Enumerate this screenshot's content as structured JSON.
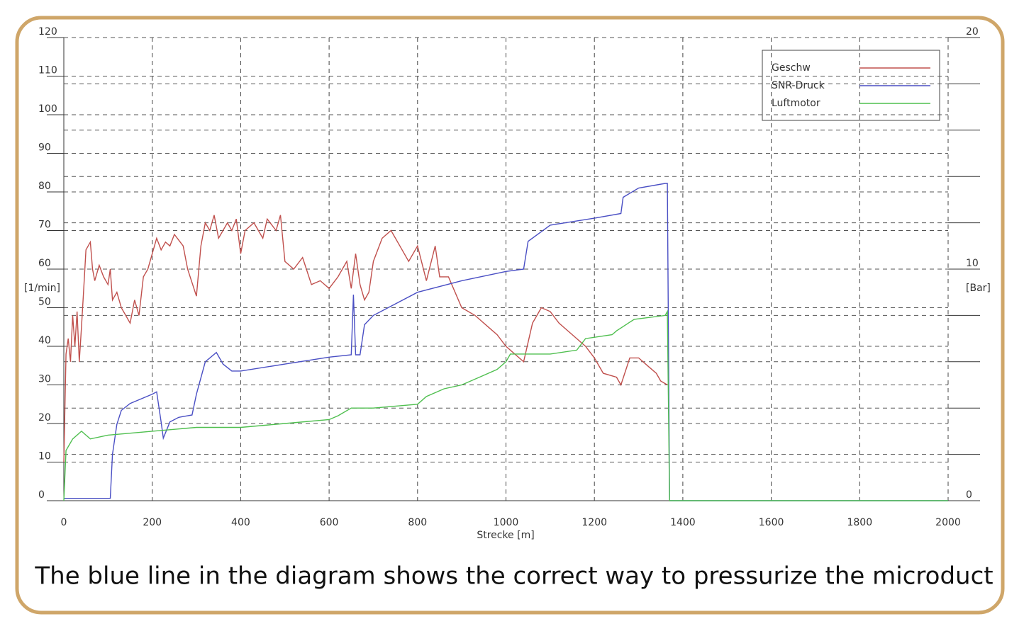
{
  "chart_data": {
    "type": "line",
    "caption": "The blue line in the diagram shows the correct way to pressurize the microduct",
    "xlabel": "Strecke [m]",
    "ylabel": "[1/min]",
    "y2label": "[Bar]",
    "xlim": [
      0,
      2000
    ],
    "xticks": [
      0,
      200,
      400,
      600,
      800,
      1000,
      1200,
      1400,
      1600,
      1800,
      2000
    ],
    "ylim": [
      0,
      120
    ],
    "yticks": [
      0,
      10,
      20,
      30,
      40,
      50,
      60,
      70,
      80,
      90,
      100,
      110,
      120
    ],
    "y2lim": [
      0,
      20
    ],
    "y2ticks": [
      0,
      10,
      20
    ],
    "y2minor_step": 2,
    "grid": true,
    "legend": "upper right",
    "series": [
      {
        "name": "Geschw",
        "color": "#c0504d",
        "axis": "y",
        "x": [
          0,
          5,
          10,
          15,
          20,
          25,
          30,
          35,
          40,
          45,
          50,
          55,
          60,
          65,
          70,
          80,
          90,
          100,
          105,
          110,
          120,
          130,
          140,
          150,
          160,
          170,
          180,
          190,
          200,
          210,
          220,
          230,
          240,
          250,
          270,
          280,
          300,
          310,
          320,
          330,
          340,
          350,
          370,
          380,
          390,
          400,
          410,
          430,
          450,
          460,
          480,
          490,
          500,
          520,
          540,
          560,
          580,
          600,
          620,
          640,
          650,
          660,
          670,
          680,
          690,
          700,
          720,
          740,
          760,
          780,
          800,
          820,
          840,
          850,
          870,
          900,
          930,
          960,
          980,
          1000,
          1040,
          1060,
          1080,
          1100,
          1120,
          1150,
          1180,
          1200,
          1220,
          1250,
          1260,
          1280,
          1300,
          1320,
          1340,
          1350,
          1365
        ],
        "values": [
          10,
          38,
          42,
          36,
          48,
          40,
          49,
          36,
          45,
          55,
          65,
          66,
          67,
          60,
          57,
          61,
          58,
          56,
          60,
          52,
          54,
          50,
          48,
          46,
          52,
          48,
          58,
          60,
          64,
          68,
          65,
          67,
          66,
          69,
          66,
          60,
          53,
          66,
          72,
          70,
          74,
          68,
          72,
          70,
          73,
          64,
          70,
          72,
          68,
          73,
          70,
          74,
          62,
          60,
          63,
          56,
          57,
          55,
          58,
          62,
          55,
          64,
          56,
          52,
          54,
          62,
          68,
          70,
          66,
          62,
          66,
          57,
          66,
          58,
          58,
          50,
          48,
          45,
          43,
          40,
          36,
          46,
          50,
          49,
          46,
          43,
          40,
          37,
          33,
          32,
          30,
          37,
          37,
          35,
          33,
          31,
          30
        ]
      },
      {
        "name": "SNR-Druck",
        "color": "#4a4fc4",
        "axis": "y2",
        "x": [
          0,
          105,
          110,
          120,
          130,
          150,
          200,
          210,
          220,
          225,
          240,
          260,
          290,
          300,
          320,
          345,
          360,
          380,
          400,
          500,
          600,
          650,
          655,
          660,
          670,
          680,
          700,
          800,
          900,
          1000,
          1040,
          1050,
          1100,
          1200,
          1260,
          1265,
          1300,
          1360,
          1365,
          1370,
          2000
        ],
        "values": [
          0.1,
          0.1,
          2,
          3.3,
          3.9,
          4.2,
          4.6,
          4.7,
          3.4,
          2.7,
          3.4,
          3.6,
          3.7,
          4.6,
          6.0,
          6.4,
          5.9,
          5.6,
          5.6,
          5.9,
          6.2,
          6.3,
          8.9,
          6.3,
          6.3,
          7.6,
          8.0,
          9.0,
          9.5,
          9.9,
          10.0,
          11.2,
          11.9,
          12.2,
          12.4,
          13.1,
          13.5,
          13.7,
          13.7,
          0,
          0
        ]
      },
      {
        "name": "Luftmotor",
        "color": "#4fbf4f",
        "axis": "y",
        "x": [
          0,
          5,
          20,
          40,
          60,
          100,
          200,
          300,
          400,
          500,
          600,
          620,
          650,
          700,
          800,
          820,
          860,
          900,
          940,
          980,
          1000,
          1010,
          1100,
          1160,
          1180,
          1240,
          1250,
          1290,
          1360,
          1365,
          1370,
          2000
        ],
        "values": [
          0,
          13,
          16,
          18,
          16,
          17,
          18,
          19,
          19,
          20,
          21,
          22,
          24,
          24,
          25,
          27,
          29,
          30,
          32,
          34,
          36,
          38,
          38,
          39,
          42,
          43,
          44,
          47,
          48,
          49,
          0,
          0
        ]
      }
    ]
  }
}
